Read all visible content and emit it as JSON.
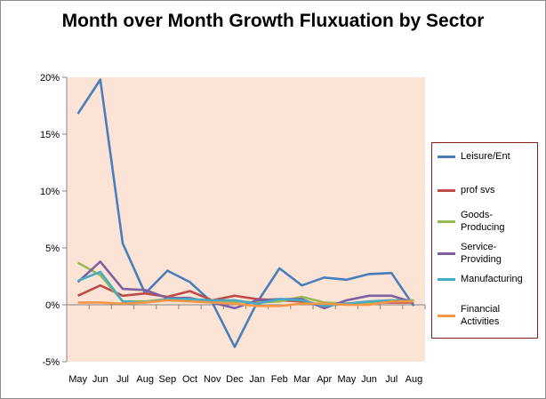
{
  "chart_data": {
    "type": "line",
    "title": "Month over Month Growth Fluxuation by Sector",
    "xlabel": "",
    "ylabel": "",
    "categories": [
      "May",
      "Jun",
      "Jul",
      "Aug",
      "Sep",
      "Oct",
      "Nov",
      "Dec",
      "Jan",
      "Feb",
      "Mar",
      "Apr",
      "May",
      "Jun",
      "Jul",
      "Aug"
    ],
    "yticks": [
      "20%",
      "15%",
      "10%",
      "5%",
      "0%",
      "-5%"
    ],
    "ylim": [
      -5,
      20
    ],
    "grid": false,
    "legend_position": "right",
    "plot_background": "#fbe4d5",
    "series": [
      {
        "name": "Leisure/Ent",
        "color": "#4a7ebb",
        "values": [
          16.8,
          19.8,
          5.4,
          1.0,
          3.0,
          2.0,
          0.2,
          -3.7,
          0.2,
          3.2,
          1.7,
          2.4,
          2.2,
          2.7,
          2.8,
          -0.1
        ]
      },
      {
        "name": "prof svs",
        "color": "#be4b48",
        "values": [
          0.8,
          1.7,
          0.8,
          1.0,
          0.7,
          1.2,
          0.4,
          0.8,
          0.5,
          0.4,
          0.3,
          -0.1,
          0.1,
          0.2,
          0.2,
          0.2
        ]
      },
      {
        "name": "Goods-Producing",
        "color": "#98b954",
        "values": [
          3.7,
          2.6,
          0.3,
          0.3,
          0.5,
          0.5,
          0.3,
          0.3,
          0.2,
          0.3,
          0.7,
          0.2,
          0.1,
          0.2,
          0.4,
          0.4
        ]
      },
      {
        "name": "Service-Providing",
        "color": "#7d60a0",
        "values": [
          2.0,
          3.8,
          1.4,
          1.3,
          0.6,
          0.6,
          0.2,
          -0.3,
          0.4,
          0.5,
          0.5,
          -0.3,
          0.4,
          0.8,
          0.8,
          0.2
        ]
      },
      {
        "name": "Manufacturing",
        "color": "#46aac4",
        "values": [
          2.1,
          2.9,
          0.3,
          0.2,
          0.5,
          0.5,
          0.4,
          0.4,
          0.1,
          0.5,
          0.4,
          -0.1,
          0.1,
          0.3,
          0.4,
          0.3
        ]
      },
      {
        "name": "Financial Activities",
        "color": "#f79646",
        "values": [
          0.2,
          0.2,
          0.1,
          0.2,
          0.4,
          0.3,
          0.2,
          0.1,
          -0.1,
          -0.1,
          0.1,
          0.1,
          0.0,
          0.0,
          0.3,
          0.3
        ]
      }
    ]
  },
  "legend": {
    "labels": [
      "Leisure/Ent",
      "prof svs",
      "Goods-\nProducing",
      "Service-\nProviding",
      "Manufacturing",
      "Financial\nActivities"
    ]
  }
}
